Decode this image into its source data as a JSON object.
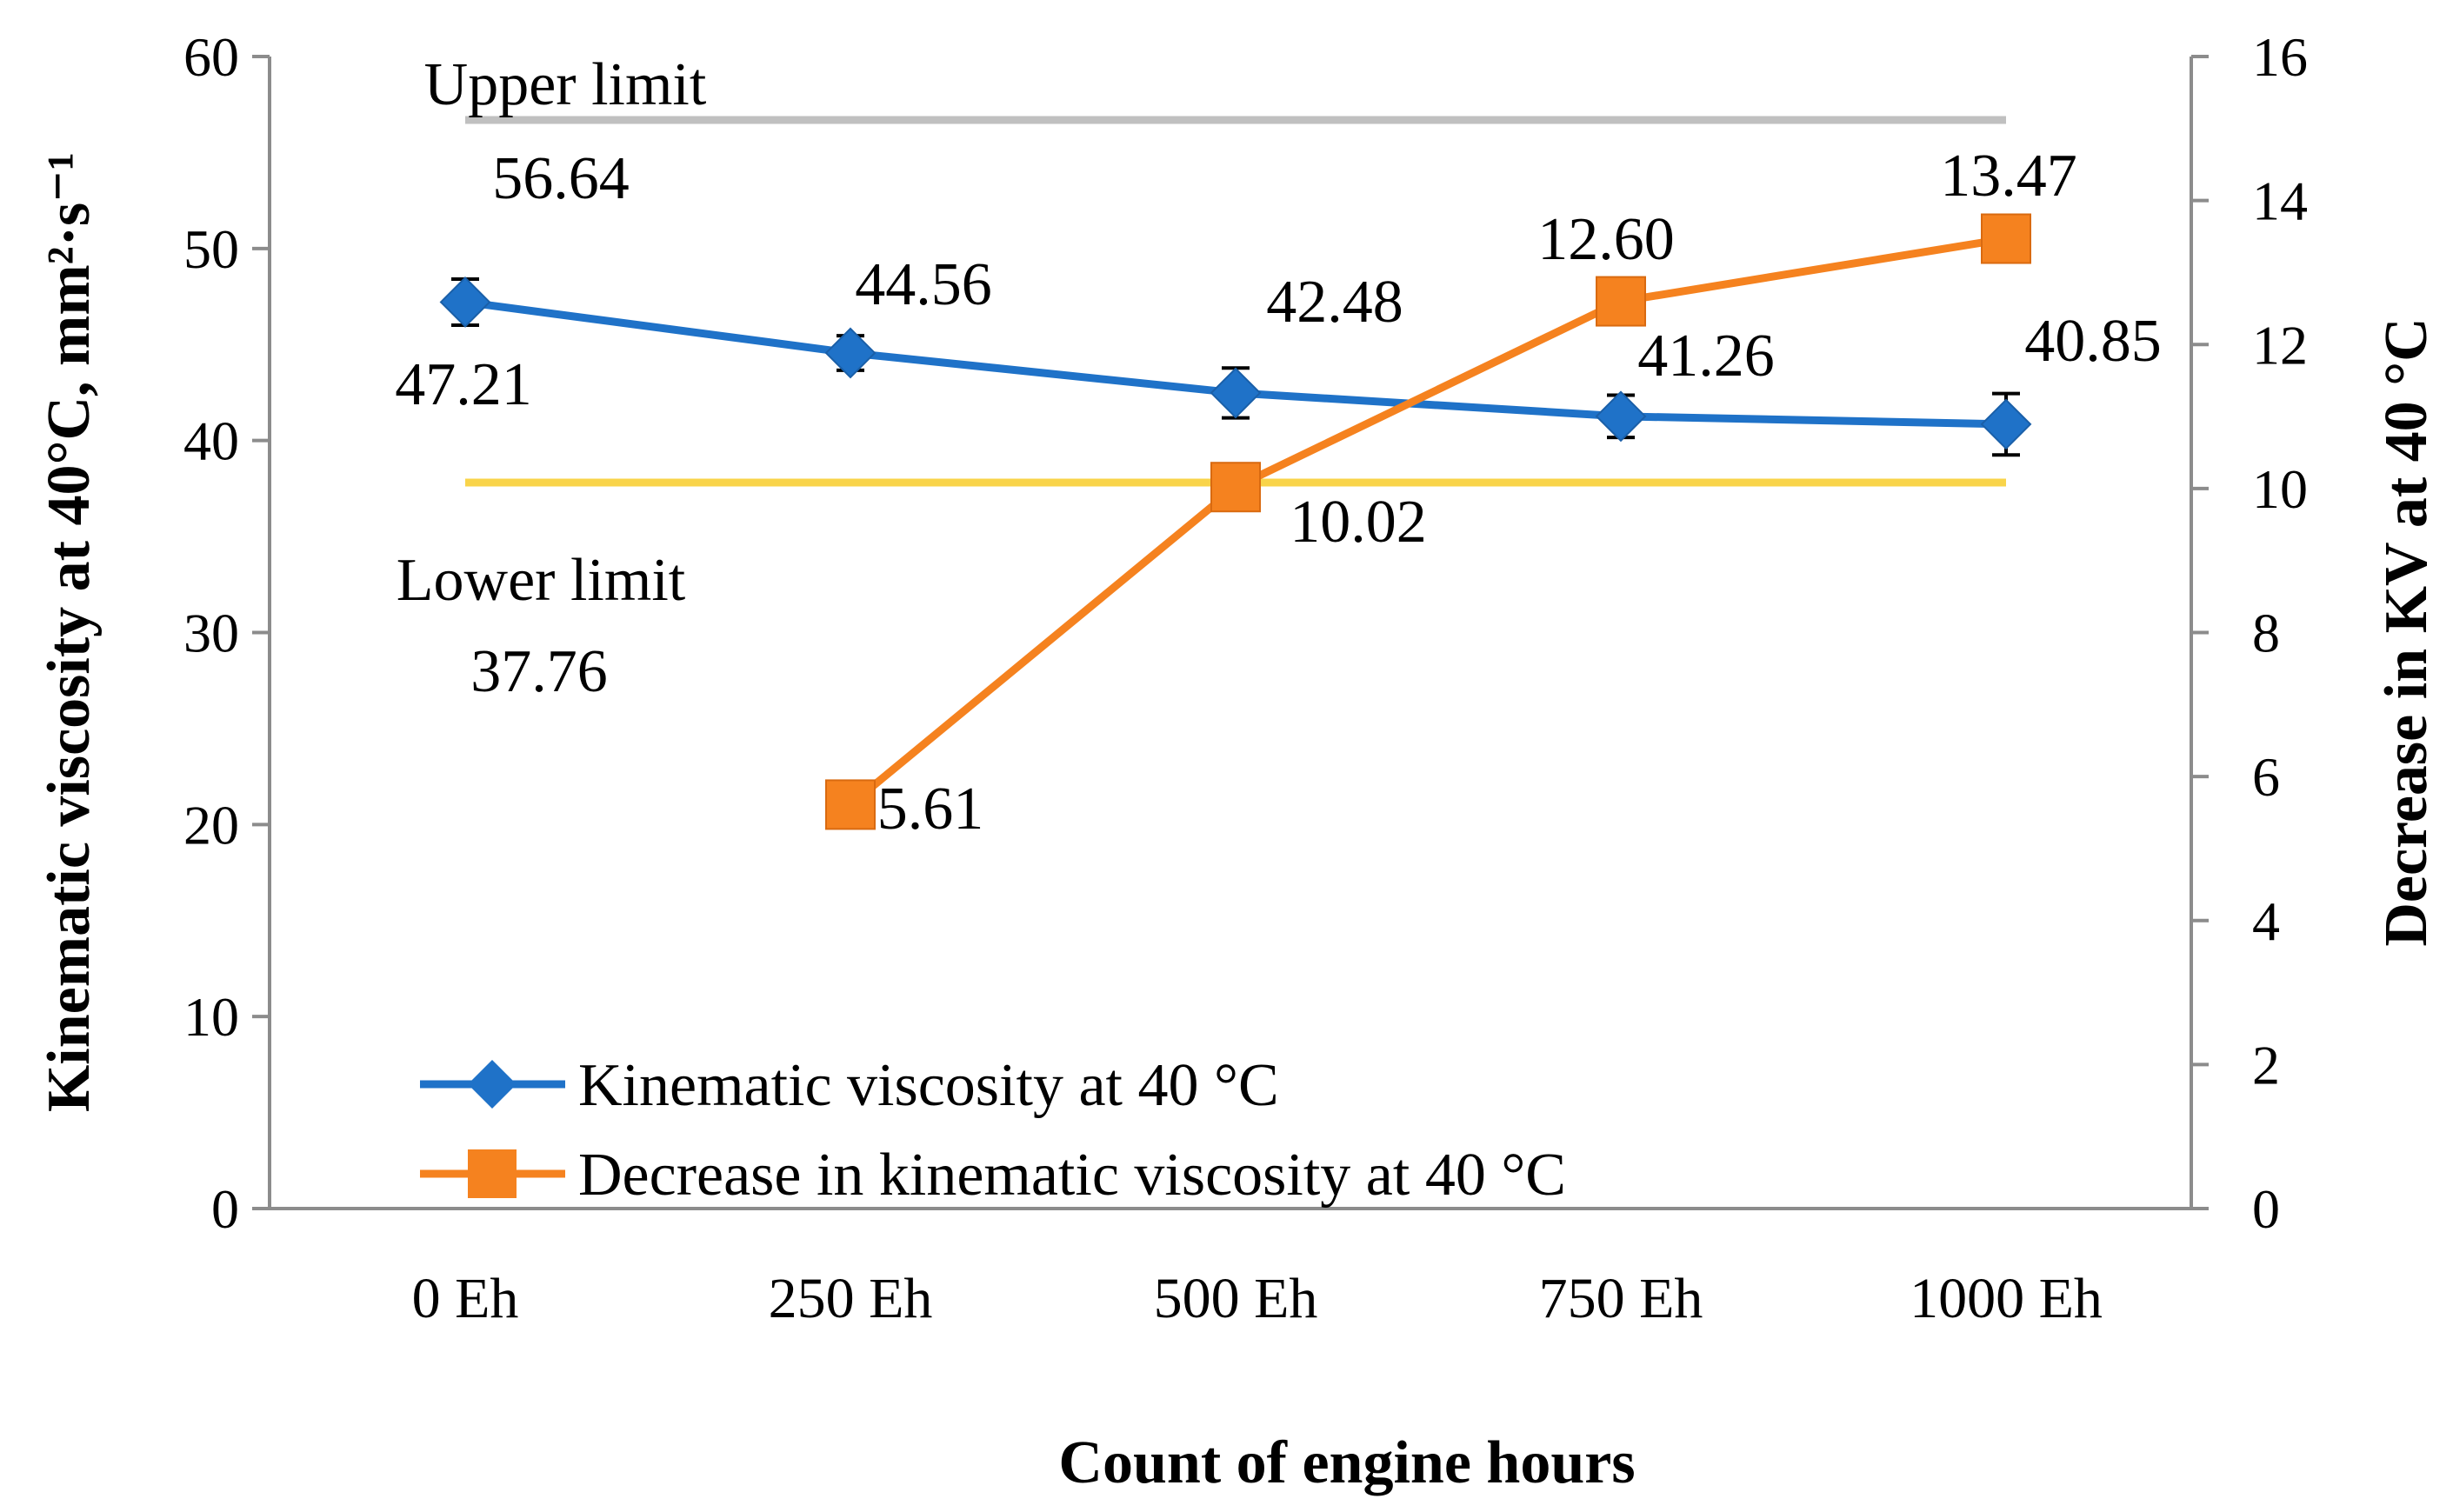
{
  "chart_data": {
    "type": "line",
    "title": "",
    "xlabel": "Count of engine hours",
    "ylabel_left": "Kinematic viscosity at 40°C, mm²·s⁻¹",
    "ylabel_right": "Decrease in KV at 40 °C",
    "categories": [
      "0 Eh",
      "250 Eh",
      "500 Eh",
      "750 Eh",
      "1000 Eh"
    ],
    "ylim_left": [
      0,
      60
    ],
    "ylim_right": [
      0,
      16
    ],
    "yticks_left": [
      0,
      10,
      20,
      30,
      40,
      50,
      60
    ],
    "yticks_right": [
      0,
      2,
      4,
      6,
      8,
      10,
      12,
      14,
      16
    ],
    "grid": false,
    "legend_position": "bottom-left inside plot",
    "series": [
      {
        "name": "Kinematic viscosity at 40 °C",
        "axis": "left",
        "color": "#1f72c8",
        "marker": "diamond",
        "values": [
          47.21,
          44.56,
          42.48,
          41.26,
          40.85
        ],
        "labels": [
          "47.21",
          "44.56",
          "42.48",
          "41.26",
          "40.85"
        ],
        "error": [
          1.2,
          0.9,
          1.3,
          1.1,
          1.6
        ]
      },
      {
        "name": "Decrease in kinematic viscosity at 40 °C",
        "axis": "right",
        "color": "#f5821f",
        "marker": "square",
        "values": [
          null,
          5.61,
          10.02,
          12.6,
          13.47
        ],
        "labels": [
          "",
          "5.61",
          "10.02",
          "12.60",
          "13.47"
        ]
      }
    ],
    "reference_lines": [
      {
        "text": "Upper limit",
        "value_label": "56.64",
        "value": 56.64,
        "color": "#c0c0c0"
      },
      {
        "text": "Lower limit",
        "value_label": "37.76",
        "value": 37.76,
        "color": "#f9d44a"
      }
    ]
  }
}
